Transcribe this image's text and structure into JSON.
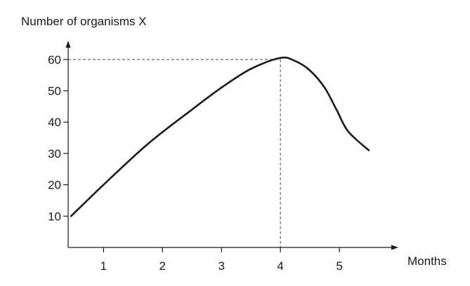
{
  "chart_data": {
    "type": "line",
    "ylabel": "Number of organisms X",
    "xlabel": "Months",
    "x_ticks": [
      1,
      2,
      3,
      4,
      5
    ],
    "y_ticks": [
      10,
      20,
      30,
      40,
      50,
      60
    ],
    "xlim": [
      0.4,
      6.0
    ],
    "ylim": [
      0,
      66
    ],
    "grid": false,
    "series": [
      {
        "x": [
          0.45,
          1.0,
          1.75,
          2.5,
          3.0,
          3.5,
          4.0,
          4.25,
          4.5,
          4.75,
          4.95,
          5.15,
          5.5
        ],
        "y": [
          10,
          20,
          33,
          44,
          51,
          57,
          60.5,
          59.5,
          56.5,
          51,
          44,
          37,
          31
        ]
      }
    ],
    "annotations": [
      {
        "type": "reference-lines",
        "x": 4,
        "y": 60
      }
    ],
    "colors": {
      "line": "#1a1a1a",
      "axis": "#1a1a1a",
      "guide": "#444444"
    }
  }
}
